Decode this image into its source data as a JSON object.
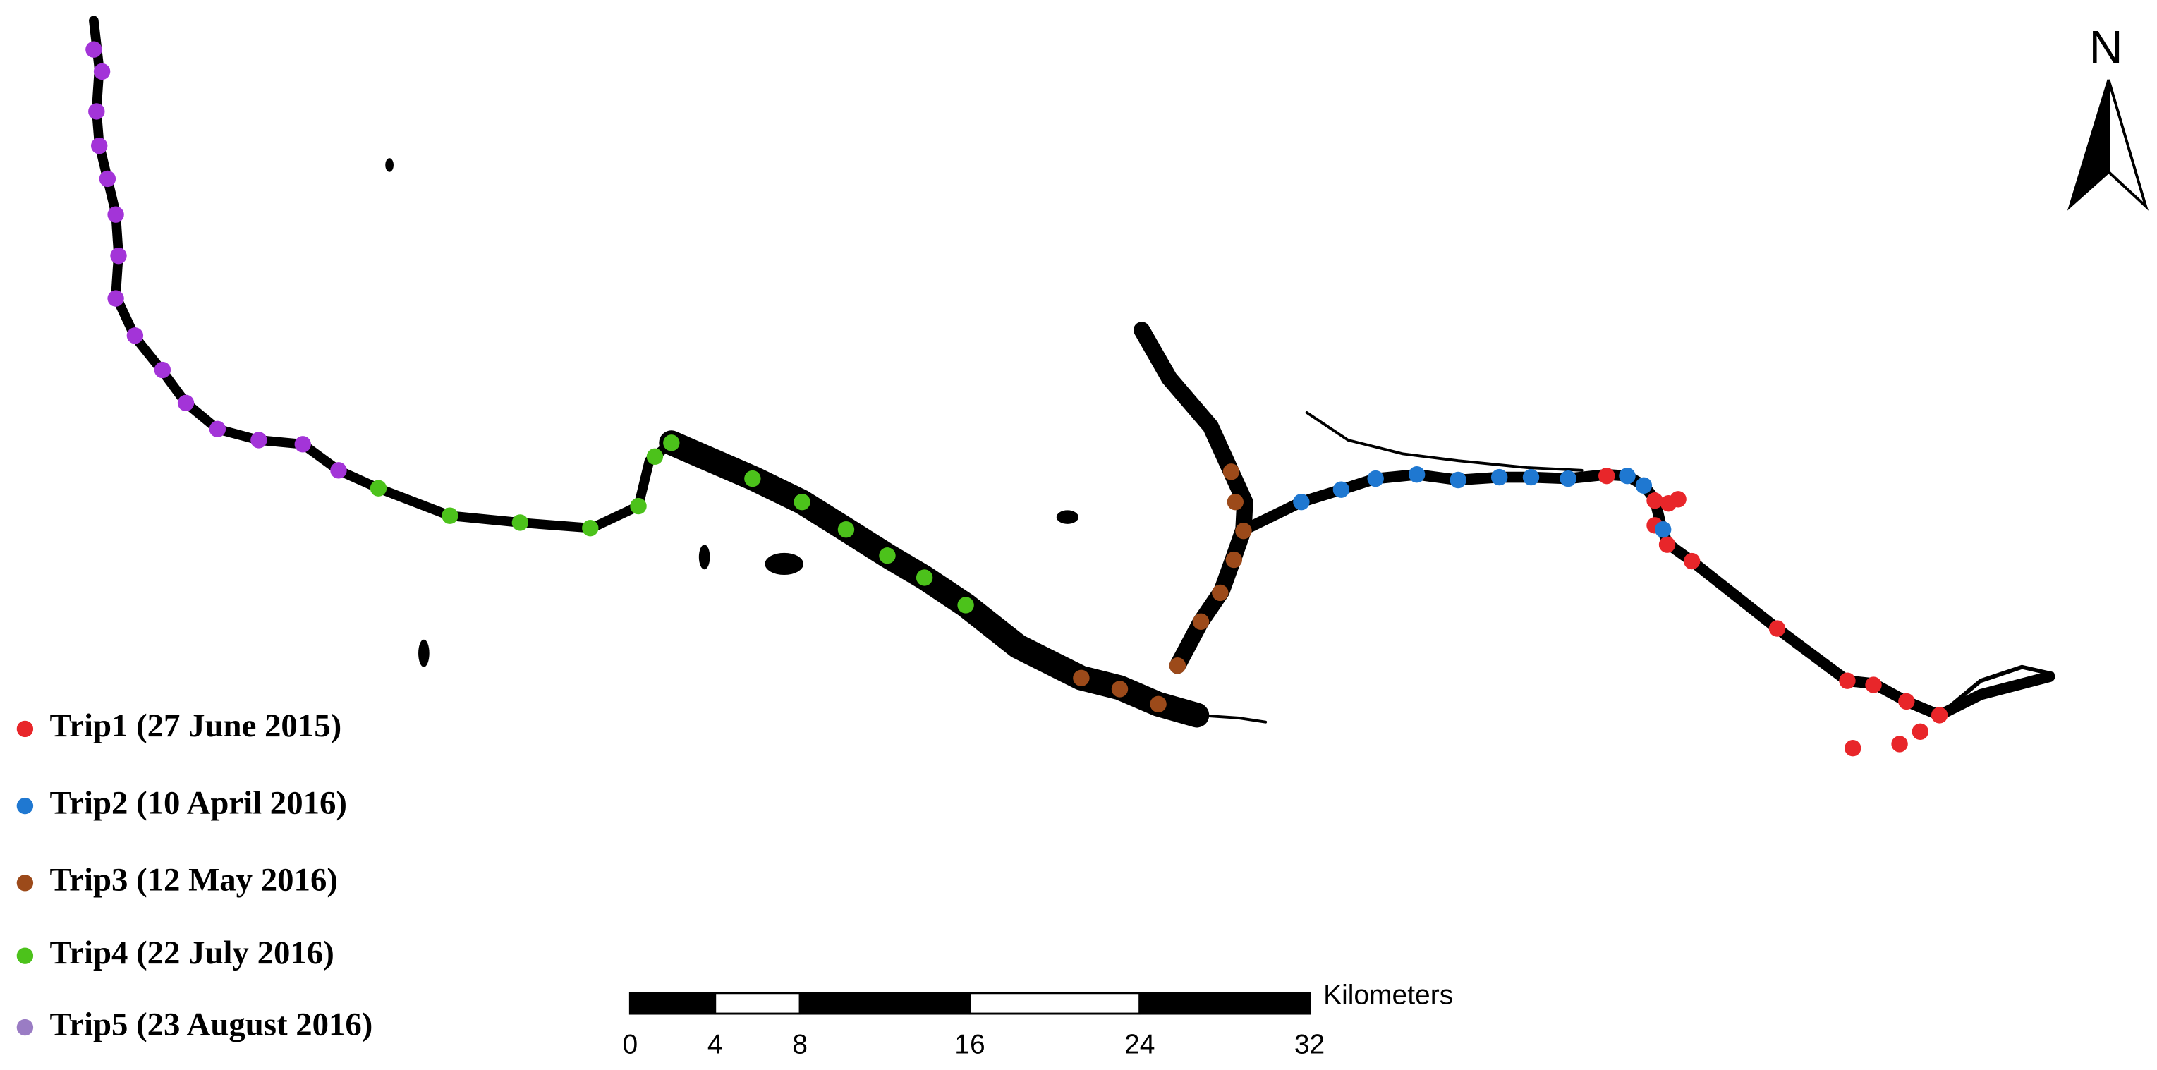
{
  "north_label": "N",
  "legend": [
    {
      "label": "Trip1 (27 June 2015)",
      "color": "#e8262a"
    },
    {
      "label": "Trip2 (10 April 2016)",
      "color": "#1f78d1"
    },
    {
      "label": "Trip3 (12 May 2016)",
      "color": "#9c4a1a"
    },
    {
      "label": "Trip4 (22 July 2016)",
      "color": "#4cc21b"
    },
    {
      "label": "Trip5 (23 August 2016)",
      "color": "#9a7cc4"
    }
  ],
  "scale_bar": {
    "unit": "Kilometers",
    "ticks": [
      0,
      4,
      8,
      16,
      24,
      32
    ]
  }
}
